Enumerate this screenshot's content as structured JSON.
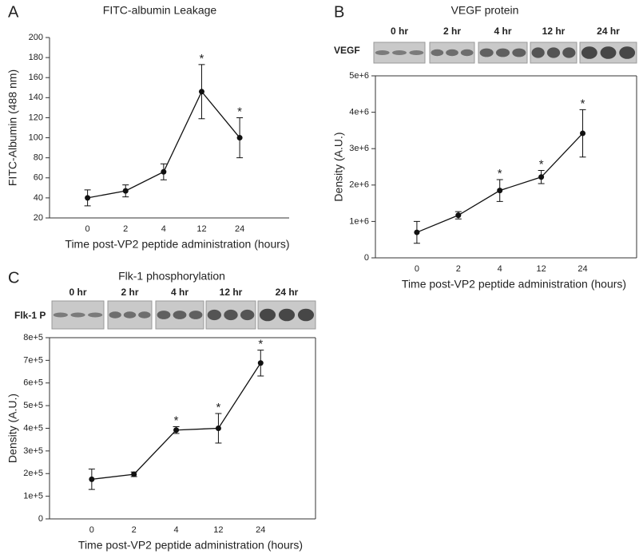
{
  "chart_data": [
    {
      "type": "line",
      "panel": "A",
      "title": "FITC-albumin Leakage",
      "x_label": "Time post-VP2 peptide administration (hours)",
      "y_label": "FITC-Albumin (488 nm)",
      "categories": [
        "0",
        "2",
        "4",
        "12",
        "24"
      ],
      "values": [
        40,
        47,
        66,
        146,
        100
      ],
      "errors": [
        8,
        6,
        8,
        27,
        20
      ],
      "significance": [
        null,
        null,
        null,
        "*",
        "*"
      ],
      "color": "#111111",
      "ylim": [
        20,
        200
      ],
      "yticks": [
        20,
        40,
        60,
        80,
        100,
        120,
        140,
        160,
        180,
        200
      ]
    },
    {
      "type": "line",
      "panel": "B",
      "title": "VEGF protein",
      "x_label": "Time post-VP2 peptide administration (hours)",
      "y_label": "Density (A.U.)",
      "blot": {
        "label": "VEGF",
        "lanes": [
          "0 hr",
          "2 hr",
          "4 hr",
          "12 hr",
          "24 hr"
        ]
      },
      "categories": [
        "0",
        "2",
        "4",
        "12",
        "24"
      ],
      "values": [
        700000,
        1170000,
        1850000,
        2220000,
        3420000
      ],
      "errors": [
        300000,
        100000,
        300000,
        180000,
        650000
      ],
      "significance": [
        null,
        null,
        "*",
        "*",
        "*"
      ],
      "color": "#111111",
      "ylim": [
        0,
        5000000
      ],
      "yticks": [
        0,
        {
          "value": 1000000,
          "label": "1e+6"
        },
        {
          "value": 2000000,
          "label": "2e+6"
        },
        {
          "value": 3000000,
          "label": "3e+6"
        },
        {
          "value": 4000000,
          "label": "4e+6"
        },
        {
          "value": 5000000,
          "label": "5e+6"
        }
      ]
    },
    {
      "type": "line",
      "panel": "C",
      "title": "Flk-1 phosphorylation",
      "x_label": "Time post-VP2 peptide administration (hours)",
      "y_label": "Density (A.U.)",
      "blot": {
        "label": "Flk-1 P",
        "lanes": [
          "0 hr",
          "2 hr",
          "4 hr",
          "12 hr",
          "24 hr"
        ]
      },
      "categories": [
        "0",
        "2",
        "4",
        "12",
        "24"
      ],
      "values": [
        175000,
        197000,
        392000,
        400000,
        688000
      ],
      "errors": [
        45000,
        10000,
        15000,
        65000,
        57000
      ],
      "significance": [
        null,
        null,
        "*",
        "*",
        "*"
      ],
      "color": "#111111",
      "ylim": [
        0,
        800000
      ],
      "yticks": [
        0,
        {
          "value": 100000,
          "label": "1e+5"
        },
        {
          "value": 200000,
          "label": "2e+5"
        },
        {
          "value": 300000,
          "label": "3e+5"
        },
        {
          "value": 400000,
          "label": "4e+5"
        },
        {
          "value": 500000,
          "label": "5e+5"
        },
        {
          "value": 600000,
          "label": "6e+5"
        },
        {
          "value": 700000,
          "label": "7e+5"
        },
        {
          "value": 800000,
          "label": "8e+5"
        }
      ]
    }
  ]
}
